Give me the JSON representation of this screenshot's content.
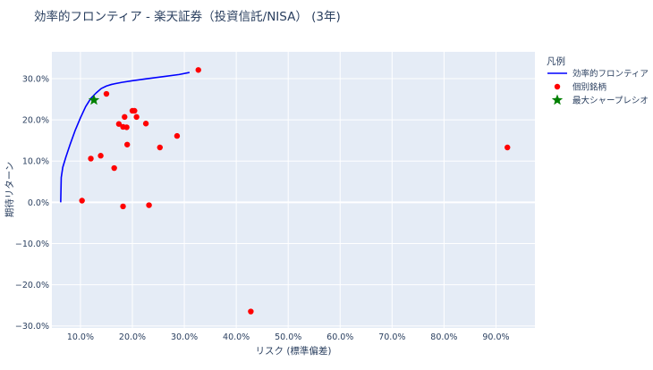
{
  "chart_data": {
    "type": "scatter",
    "title": "効率的フロンティア - 楽天証券（投資信託/NISA） (3年)",
    "xlabel": "リスク (標準偏差)",
    "ylabel": "期待リターン",
    "xlim": [
      0.045,
      0.975
    ],
    "ylim": [
      -0.305,
      0.365
    ],
    "x_ticks": [
      0.1,
      0.2,
      0.3,
      0.4,
      0.5,
      0.6,
      0.7,
      0.8,
      0.9
    ],
    "y_ticks": [
      -0.3,
      -0.2,
      -0.1,
      0.0,
      0.1,
      0.2,
      0.3
    ],
    "x_tick_labels": [
      "10.0%",
      "20.0%",
      "30.0%",
      "40.0%",
      "50.0%",
      "60.0%",
      "70.0%",
      "80.0%",
      "90.0%"
    ],
    "y_tick_labels": [
      "−30.0%",
      "−20.0%",
      "−10.0%",
      "0.0%",
      "10.0%",
      "20.0%",
      "30.0%"
    ],
    "grid": true,
    "legend_title": "凡例",
    "legend_position": "right",
    "series": [
      {
        "name": "効率的フロンティア",
        "kind": "line",
        "color": "#0000ff",
        "points": [
          [
            0.062,
            0.0
          ],
          [
            0.063,
            0.06
          ],
          [
            0.066,
            0.085
          ],
          [
            0.072,
            0.11
          ],
          [
            0.08,
            0.14
          ],
          [
            0.09,
            0.175
          ],
          [
            0.1,
            0.205
          ],
          [
            0.11,
            0.232
          ],
          [
            0.12,
            0.252
          ],
          [
            0.13,
            0.265
          ],
          [
            0.14,
            0.276
          ],
          [
            0.15,
            0.282
          ],
          [
            0.16,
            0.286
          ],
          [
            0.18,
            0.291
          ],
          [
            0.2,
            0.295
          ],
          [
            0.23,
            0.3
          ],
          [
            0.26,
            0.305
          ],
          [
            0.29,
            0.31
          ],
          [
            0.31,
            0.315
          ]
        ]
      },
      {
        "name": "個別銘柄",
        "kind": "markers",
        "color": "#ff0000",
        "points": [
          [
            0.327,
            0.321
          ],
          [
            0.15,
            0.263
          ],
          [
            0.2,
            0.222
          ],
          [
            0.204,
            0.222
          ],
          [
            0.185,
            0.207
          ],
          [
            0.208,
            0.207
          ],
          [
            0.174,
            0.19
          ],
          [
            0.226,
            0.191
          ],
          [
            0.182,
            0.183
          ],
          [
            0.189,
            0.182
          ],
          [
            0.286,
            0.161
          ],
          [
            0.19,
            0.14
          ],
          [
            0.253,
            0.133
          ],
          [
            0.139,
            0.113
          ],
          [
            0.12,
            0.106
          ],
          [
            0.165,
            0.083
          ],
          [
            0.103,
            0.004
          ],
          [
            0.182,
            -0.01
          ],
          [
            0.232,
            -0.007
          ],
          [
            0.922,
            0.133
          ],
          [
            0.428,
            -0.265
          ]
        ]
      },
      {
        "name": "最大シャープレシオ",
        "kind": "star",
        "color": "#008000",
        "points": [
          [
            0.126,
            0.248
          ]
        ]
      }
    ]
  }
}
